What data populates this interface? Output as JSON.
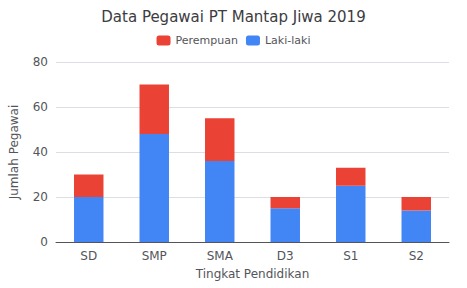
{
  "chart_data": {
    "type": "bar",
    "title": "Data Pegawai PT Mantap Jiwa 2019",
    "xlabel": "Tingkat Pendidikan",
    "ylabel": "Jumlah Pegawai",
    "categories": [
      "SD",
      "SMP",
      "SMA",
      "D3",
      "S1",
      "S2"
    ],
    "series": [
      {
        "name": "Laki-laki",
        "color": "#4285F4",
        "values": [
          20,
          48,
          36,
          15,
          25,
          14
        ]
      },
      {
        "name": "Perempuan",
        "color": "#EA4335",
        "values": [
          10,
          22,
          19,
          5,
          8,
          6
        ]
      }
    ],
    "stacked": true,
    "ylim": [
      0,
      80
    ],
    "yticks": [
      0,
      20,
      40,
      60,
      80
    ],
    "grid": true,
    "legend": "top"
  }
}
